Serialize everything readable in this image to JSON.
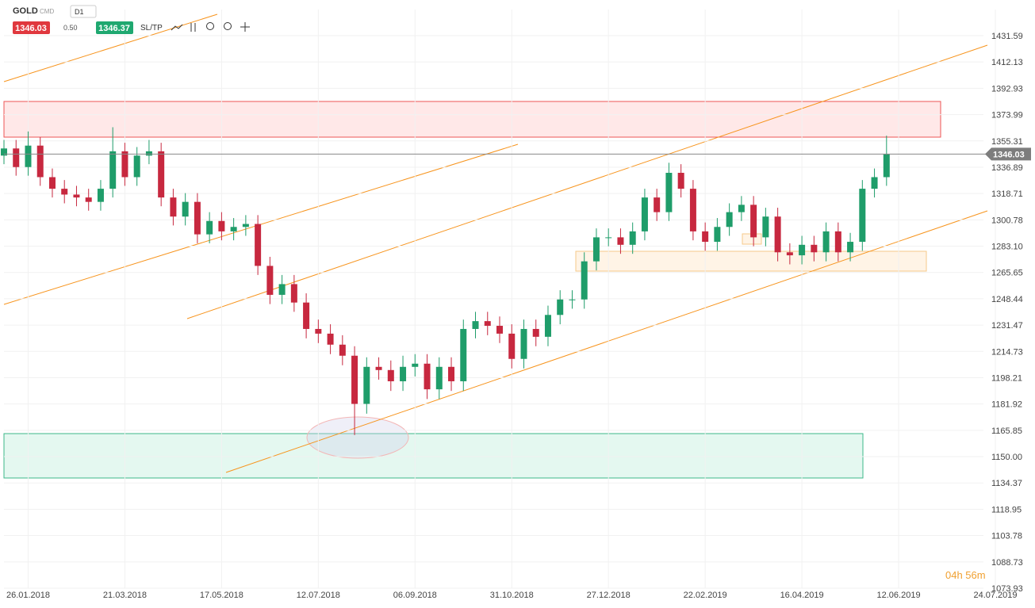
{
  "toolbar": {
    "symbol": "GOLD",
    "market": "CMD",
    "interval": "D1",
    "bid": "1346.03",
    "spread": "0.50",
    "ask": "1346.37",
    "sltp": "SL/TP"
  },
  "timer": "04h 56m",
  "chart_data": {
    "type": "candlestick",
    "x": [
      -10,
      -5,
      0,
      5,
      10,
      15,
      20,
      25,
      30,
      35,
      40,
      45,
      50,
      55,
      60,
      65,
      70,
      75,
      80,
      85,
      90,
      95,
      100,
      105,
      110,
      115,
      120,
      125,
      130,
      135,
      140,
      145,
      150,
      155,
      160,
      165,
      170,
      175,
      180,
      185,
      190,
      195,
      200,
      205,
      210,
      215,
      220,
      225,
      230,
      235,
      240,
      245,
      250,
      255,
      260,
      265,
      270,
      275,
      280,
      285,
      290,
      295,
      300,
      305,
      310,
      315,
      320,
      325,
      330,
      335,
      340,
      345,
      350,
      355
    ],
    "open": [
      1345,
      1350,
      1337,
      1352,
      1330,
      1322,
      1318,
      1316,
      1313,
      1322,
      1348,
      1330,
      1345,
      1348,
      1316,
      1303,
      1313,
      1291,
      1300,
      1293,
      1296,
      1298,
      1270,
      1251,
      1258,
      1246,
      1229,
      1226,
      1219,
      1212,
      1182,
      1205,
      1203,
      1196,
      1205,
      1207,
      1191,
      1205,
      1196,
      1229,
      1234,
      1231,
      1226,
      1210,
      1229,
      1224,
      1238,
      1248,
      1248,
      1273,
      1289,
      1289,
      1284,
      1293,
      1316,
      1306,
      1333,
      1322,
      1293,
      1286,
      1296,
      1306,
      1311,
      1289,
      1303,
      1279,
      1277,
      1284,
      1279,
      1293,
      1279,
      1286,
      1322,
      1330
    ],
    "high": [
      1356,
      1356,
      1362,
      1358,
      1336,
      1328,
      1324,
      1322,
      1328,
      1365,
      1354,
      1351,
      1356,
      1354,
      1322,
      1319,
      1319,
      1306,
      1306,
      1302,
      1304,
      1304,
      1276,
      1264,
      1264,
      1252,
      1235,
      1232,
      1225,
      1218,
      1211,
      1211,
      1209,
      1212,
      1213,
      1213,
      1211,
      1211,
      1235,
      1240,
      1240,
      1237,
      1232,
      1235,
      1235,
      1244,
      1254,
      1254,
      1279,
      1295,
      1295,
      1295,
      1299,
      1322,
      1322,
      1340,
      1339,
      1328,
      1299,
      1302,
      1312,
      1317,
      1317,
      1309,
      1309,
      1285,
      1290,
      1290,
      1299,
      1299,
      1292,
      1328,
      1336,
      1359
    ],
    "low": [
      1339,
      1331,
      1331,
      1324,
      1316,
      1312,
      1310,
      1307,
      1307,
      1316,
      1324,
      1324,
      1339,
      1310,
      1297,
      1297,
      1285,
      1285,
      1287,
      1287,
      1290,
      1264,
      1245,
      1245,
      1240,
      1223,
      1220,
      1213,
      1206,
      1163,
      1176,
      1197,
      1190,
      1190,
      1199,
      1185,
      1185,
      1190,
      1190,
      1223,
      1225,
      1220,
      1204,
      1204,
      1218,
      1218,
      1232,
      1242,
      1242,
      1267,
      1283,
      1278,
      1278,
      1287,
      1300,
      1300,
      1316,
      1287,
      1280,
      1280,
      1290,
      1300,
      1283,
      1283,
      1273,
      1271,
      1271,
      1273,
      1273,
      1273,
      1273,
      1280,
      1316,
      1324
    ],
    "close": [
      1350,
      1337,
      1352,
      1330,
      1322,
      1318,
      1316,
      1313,
      1322,
      1348,
      1330,
      1345,
      1348,
      1316,
      1303,
      1313,
      1291,
      1300,
      1293,
      1296,
      1298,
      1270,
      1251,
      1258,
      1246,
      1229,
      1226,
      1219,
      1212,
      1182,
      1205,
      1203,
      1196,
      1205,
      1207,
      1191,
      1205,
      1196,
      1229,
      1234,
      1231,
      1226,
      1210,
      1229,
      1224,
      1238,
      1248,
      1248,
      1273,
      1289,
      1289,
      1284,
      1293,
      1316,
      1306,
      1333,
      1322,
      1293,
      1286,
      1296,
      1306,
      1311,
      1289,
      1303,
      1279,
      1277,
      1284,
      1279,
      1293,
      1279,
      1286,
      1322,
      1330,
      1346
    ],
    "up_color": "#1f9d6a",
    "down_color": "#c7283f",
    "xlim": [
      -10,
      400
    ],
    "xticks": [
      {
        "value": 0,
        "label": "26.01.2018"
      },
      {
        "value": 40,
        "label": "21.03.2018"
      },
      {
        "value": 80,
        "label": "17.05.2018"
      },
      {
        "value": 120,
        "label": "12.07.2018"
      },
      {
        "value": 160,
        "label": "06.09.2018"
      },
      {
        "value": 200,
        "label": "31.10.2018"
      },
      {
        "value": 240,
        "label": "27.12.2018"
      },
      {
        "value": 280,
        "label": "22.02.2019"
      },
      {
        "value": 320,
        "label": "16.04.2019"
      },
      {
        "value": 360,
        "label": "12.06.2019"
      },
      {
        "value": 400,
        "label": "24.07.2019"
      }
    ],
    "ylim": [
      1073.93,
      1431.59
    ],
    "log_scale": true,
    "grid": true,
    "yticks": [
      1073.93,
      1088.73,
      1103.78,
      1118.95,
      1134.37,
      {
        "value": 1150,
        "label": "1150.00"
      },
      1165.85,
      1181.92,
      1198.21,
      1214.73,
      1231.47,
      1248.44,
      1265.65,
      {
        "value": 1283.1,
        "label": "1283.10"
      },
      1300.78,
      1318.71,
      1336.89,
      1355.31,
      1373.99,
      1392.93,
      1412.13,
      1431.59
    ],
    "last_price": 1346.03
  }
}
